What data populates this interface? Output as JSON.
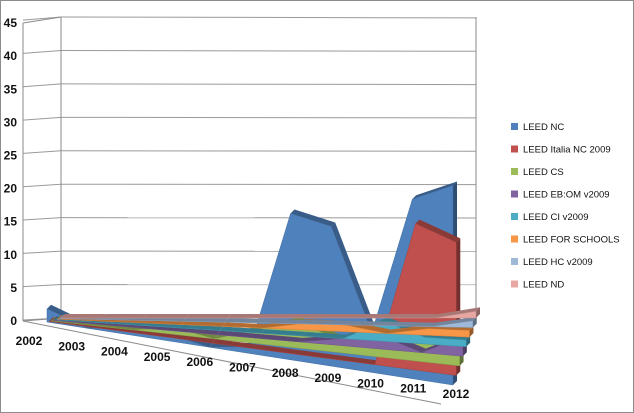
{
  "chart_data": {
    "type": "area",
    "title": "",
    "xlabel": "",
    "ylabel": "",
    "ylim": [
      0,
      45
    ],
    "yticks": [
      "0",
      "5",
      "10",
      "15",
      "20",
      "25",
      "30",
      "35",
      "40",
      "45"
    ],
    "categories": [
      "2002",
      "2003",
      "2004",
      "2005",
      "2006",
      "2007",
      "2008",
      "2009",
      "2010",
      "2011",
      "2012"
    ],
    "grid": true,
    "legend_position": "right",
    "series": [
      {
        "name": "LEED NC",
        "color": "#4f81bd",
        "values": [
          2,
          0,
          1,
          1,
          0,
          1,
          22,
          21,
          6,
          27,
          30
        ]
      },
      {
        "name": "LEED Italia NC 2009",
        "color": "#c0504d",
        "values": [
          0,
          0,
          0,
          0,
          0,
          0,
          0,
          0,
          0,
          22,
          20
        ]
      },
      {
        "name": "LEED CS",
        "color": "#9bbb59",
        "values": [
          0,
          0,
          0,
          1,
          0,
          2,
          4,
          2,
          3,
          4,
          3
        ]
      },
      {
        "name": "LEED EB:OM  v2009",
        "color": "#8064a2",
        "values": [
          0,
          0,
          0,
          0,
          0,
          0,
          0,
          1,
          2,
          0,
          3
        ]
      },
      {
        "name": "LEED CI v2009",
        "color": "#4bacc6",
        "values": [
          0,
          0,
          0,
          0,
          0,
          0,
          0,
          0,
          3,
          1,
          1
        ]
      },
      {
        "name": "LEED FOR SCHOOLS",
        "color": "#f79646",
        "values": [
          0,
          0,
          0,
          0,
          0,
          0,
          1,
          1,
          0,
          1,
          1
        ]
      },
      {
        "name": "LEED HC v2009",
        "color": "#9fb9d9",
        "values": [
          0,
          0,
          0,
          0,
          0,
          0,
          0,
          0,
          0,
          0,
          1
        ]
      },
      {
        "name": "LEED ND",
        "color": "#e8a7a3",
        "values": [
          0,
          0,
          0,
          0,
          0,
          0,
          0,
          0,
          0,
          0,
          1
        ]
      }
    ]
  }
}
